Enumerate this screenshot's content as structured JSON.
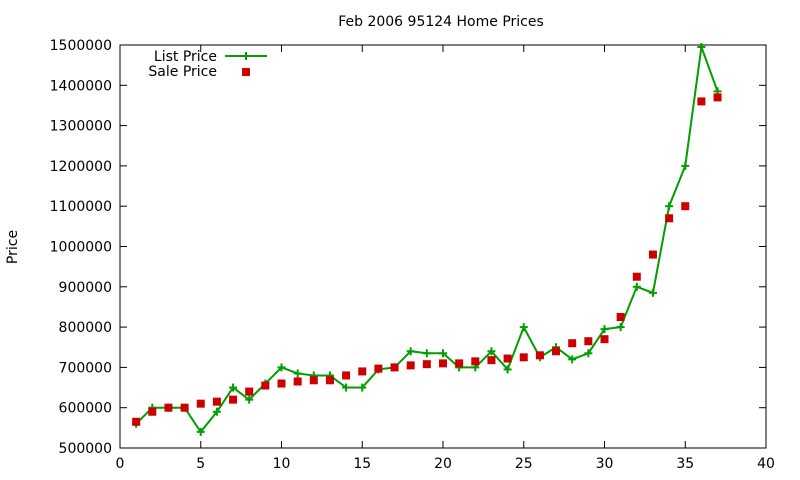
{
  "chart_data": {
    "type": "line",
    "title": "Feb 2006 95124 Home Prices",
    "xlabel": "",
    "ylabel": "Price",
    "xlim": [
      0,
      40
    ],
    "ylim": [
      500000,
      1500000
    ],
    "x_ticks": [
      "0",
      "5",
      "10",
      "15",
      "20",
      "25",
      "30",
      "35",
      "40"
    ],
    "y_ticks": [
      "500000",
      "600000",
      "700000",
      "800000",
      "900000",
      "1000000",
      "1100000",
      "1200000",
      "1300000",
      "1400000",
      "1500000"
    ],
    "x_tick_values": [
      0,
      5,
      10,
      15,
      20,
      25,
      30,
      35,
      40
    ],
    "y_tick_values": [
      500000,
      600000,
      700000,
      800000,
      900000,
      1000000,
      1100000,
      1200000,
      1300000,
      1400000,
      1500000
    ],
    "grid": false,
    "legend_position": "top-left",
    "series": [
      {
        "name": "List Price",
        "style": "line-plus",
        "color": "#009e00",
        "x": [
          1,
          2,
          3,
          4,
          5,
          6,
          7,
          8,
          9,
          10,
          11,
          12,
          13,
          14,
          15,
          16,
          17,
          18,
          19,
          20,
          21,
          22,
          23,
          24,
          25,
          26,
          27,
          28,
          29,
          30,
          31,
          32,
          33,
          34,
          35,
          36,
          37
        ],
        "y": [
          560000,
          600000,
          600000,
          600000,
          540000,
          590000,
          650000,
          620000,
          660000,
          700000,
          685000,
          680000,
          680000,
          650000,
          650000,
          695000,
          700000,
          740000,
          735000,
          735000,
          700000,
          700000,
          740000,
          695000,
          800000,
          725000,
          750000,
          720000,
          735000,
          795000,
          800000,
          900000,
          885000,
          1100000,
          1200000,
          1495000,
          1385000
        ]
      },
      {
        "name": "Sale Price",
        "style": "square-marker",
        "color": "#cc0000",
        "x": [
          1,
          2,
          3,
          4,
          5,
          6,
          7,
          8,
          9,
          10,
          11,
          12,
          13,
          14,
          15,
          16,
          17,
          18,
          19,
          20,
          21,
          22,
          23,
          24,
          25,
          26,
          27,
          28,
          29,
          30,
          31,
          32,
          33,
          34,
          35,
          36,
          37
        ],
        "y": [
          565000,
          590000,
          600000,
          600000,
          610000,
          615000,
          620000,
          640000,
          655000,
          660000,
          665000,
          668000,
          668000,
          680000,
          690000,
          697000,
          700000,
          705000,
          708000,
          710000,
          710000,
          715000,
          718000,
          722000,
          725000,
          730000,
          740000,
          760000,
          765000,
          770000,
          825000,
          925000,
          980000,
          1070000,
          1100000,
          1360000,
          1370000
        ]
      }
    ]
  }
}
